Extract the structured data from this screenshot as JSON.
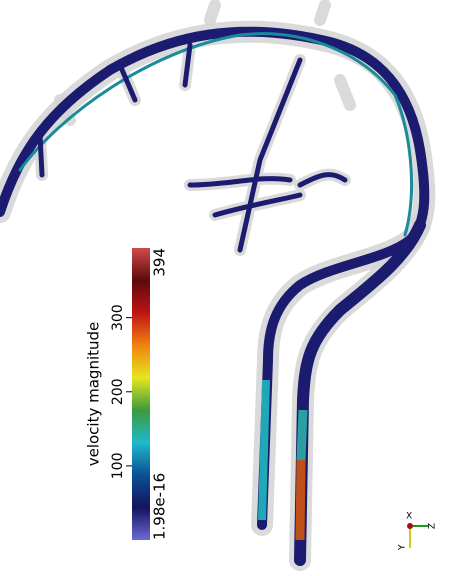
{
  "colorbar": {
    "title": "velocity magnitude",
    "range": [
      1.98e-16,
      394
    ],
    "ticks": [
      100,
      200,
      300
    ],
    "colors": [
      "#6b6bd6",
      "#14145e",
      "#0c4f94",
      "#1fb8cc",
      "#3c9a3c",
      "#e6e61e",
      "#f0820f",
      "#c01414",
      "#5c0a0a",
      "#d24a4a"
    ]
  },
  "orientation_axes": {
    "labels": [
      "X",
      "Y",
      "Z"
    ]
  }
}
